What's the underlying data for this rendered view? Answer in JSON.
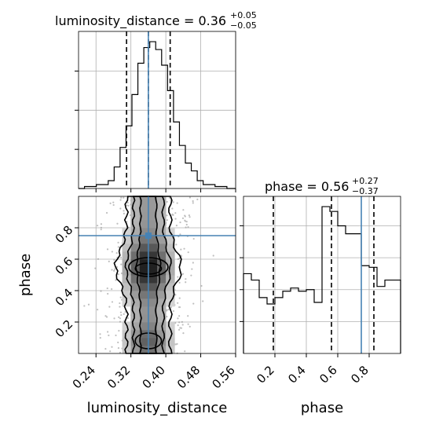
{
  "chart_data": {
    "type": "corner",
    "parameters": [
      "luminosity_distance",
      "phase"
    ],
    "truths": {
      "luminosity_distance": 0.36,
      "phase": 0.75
    },
    "panels": [
      {
        "id": "hist_luminosity_distance",
        "type": "histogram",
        "title_prefix": "luminosity_distance = 0.36",
        "title_sup": "+0.05",
        "title_sub": "−0.05",
        "x_range": [
          0.2,
          0.56
        ],
        "bin_edges": [
          0.2,
          0.2136,
          0.2272,
          0.2408,
          0.2544,
          0.268,
          0.2816,
          0.2952,
          0.3088,
          0.3224,
          0.336,
          0.3496,
          0.3632,
          0.3768,
          0.3904,
          0.404,
          0.4176,
          0.4312,
          0.4448,
          0.4584,
          0.472,
          0.4856,
          0.4992,
          0.5128,
          0.5264,
          0.54,
          0.5536,
          0.56
        ],
        "counts": [
          0,
          1,
          1,
          2,
          2,
          4,
          11,
          21,
          32,
          48,
          64,
          72,
          75,
          71,
          63,
          50,
          34,
          22,
          13,
          9,
          4,
          2,
          2,
          1,
          1,
          0,
          0
        ],
        "quantiles": [
          0.31,
          0.36,
          0.41
        ],
        "truth": 0.36,
        "x_ticks": [
          0.24,
          0.32,
          0.4,
          0.48,
          0.56
        ]
      },
      {
        "id": "hist_phase",
        "type": "histogram",
        "title_prefix": "phase = 0.56",
        "title_sup": "+0.27",
        "title_sub": "−0.37",
        "x_range": [
          0.0,
          1.0
        ],
        "bin_edges": [
          0.0,
          0.05,
          0.1,
          0.15,
          0.2,
          0.25,
          0.3,
          0.35,
          0.4,
          0.45,
          0.5,
          0.55,
          0.6,
          0.65,
          0.7,
          0.75,
          0.8,
          0.85,
          0.9,
          0.95,
          1.0
        ],
        "counts": [
          0.5,
          0.46,
          0.35,
          0.31,
          0.35,
          0.39,
          0.41,
          0.39,
          0.4,
          0.32,
          0.92,
          0.89,
          0.8,
          0.75,
          0.75,
          0.55,
          0.54,
          0.42,
          0.46,
          0.46
        ],
        "quantiles": [
          0.19,
          0.56,
          0.83
        ],
        "truth": 0.75,
        "x_ticks": [
          0.2,
          0.4,
          0.6,
          0.8
        ],
        "x_tick_labels": [
          "0.2",
          "0.4",
          "0.6",
          "0.8"
        ],
        "xlabel": "phase"
      },
      {
        "id": "joint_luminosity_distance_phase",
        "type": "2d_density",
        "x": "luminosity_distance",
        "y": "phase",
        "x_range": [
          0.2,
          0.56
        ],
        "y_range": [
          0.0,
          1.0
        ],
        "x_ticks": [
          0.24,
          0.32,
          0.4,
          0.48,
          0.56
        ],
        "x_tick_labels": [
          "0.24",
          "0.32",
          "0.40",
          "0.48",
          "0.56"
        ],
        "y_ticks": [
          0.2,
          0.4,
          0.6,
          0.8
        ],
        "y_tick_labels": [
          "0.2",
          "0.4",
          "0.6",
          "0.8"
        ],
        "xlabel": "luminosity_distance",
        "ylabel": "phase",
        "truth_x": 0.36,
        "truth_y": 0.75,
        "density_peaks": [
          {
            "x": 0.36,
            "y": 0.55,
            "level": "highest"
          },
          {
            "x": 0.36,
            "y": 0.08,
            "level": "secondary"
          }
        ],
        "contour_levels": 4
      }
    ]
  }
}
